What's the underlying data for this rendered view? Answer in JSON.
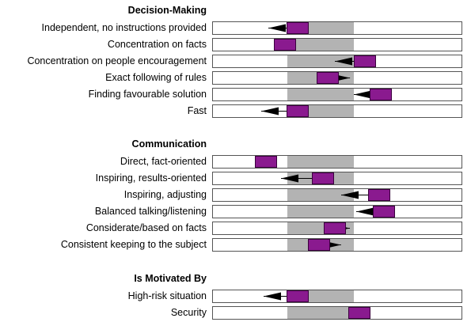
{
  "chart_data": {
    "type": "range-marker",
    "scale_range": [
      0,
      1
    ],
    "normal_band": [
      0.3,
      0.566
    ],
    "sections": [
      {
        "title": "Decision-Making",
        "rows": [
          {
            "label": "Independent, no instructions provided",
            "current": 0.342,
            "previous": 0.225
          },
          {
            "label": "Concentration on facts",
            "current": 0.291,
            "previous": null
          },
          {
            "label": "Concentration on people encouragement",
            "current": 0.61,
            "previous": 0.49
          },
          {
            "label": "Exact following of rules",
            "current": 0.461,
            "previous": 0.55
          },
          {
            "label": "Finding favourable solution",
            "current": 0.675,
            "previous": 0.566
          },
          {
            "label": "Fast",
            "current": 0.342,
            "previous": 0.195
          }
        ]
      },
      {
        "title": "Communication",
        "rows": [
          {
            "label": "Direct, fact-oriented",
            "current": 0.214,
            "previous": null
          },
          {
            "label": "Inspiring, results-oriented",
            "current": 0.444,
            "previous": 0.275
          },
          {
            "label": "Inspiring, adjusting",
            "current": 0.669,
            "previous": 0.515
          },
          {
            "label": "Balanced talking/listening",
            "current": 0.686,
            "previous": 0.575
          },
          {
            "label": "Considerate/based on facts",
            "current": 0.49,
            "previous": 0.55
          },
          {
            "label": "Consistent keeping to the subject",
            "current": 0.427,
            "previous": 0.515
          }
        ]
      },
      {
        "title": "Is Motivated By",
        "rows": [
          {
            "label": "High-risk situation",
            "current": 0.342,
            "previous": 0.205
          },
          {
            "label": "Security",
            "current": 0.59,
            "previous": null
          }
        ]
      }
    ]
  }
}
